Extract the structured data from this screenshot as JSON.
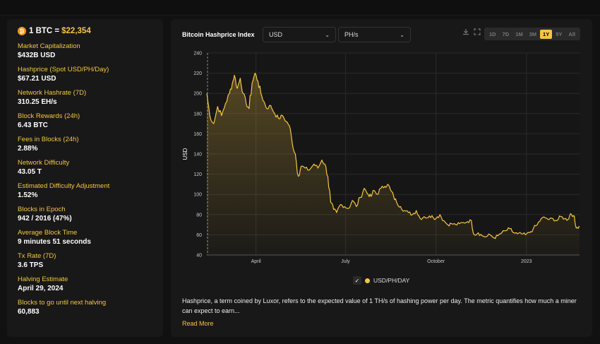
{
  "header": {
    "price_label": "1 BTC =",
    "price_value": "$22,354",
    "btc_icon": "₿"
  },
  "stats": [
    {
      "label": "Market Capitalization",
      "value": "$432B USD"
    },
    {
      "label": "Hashprice (Spot USD/PH/Day)",
      "value": "$67.21 USD"
    },
    {
      "label": "Network Hashrate (7D)",
      "value": "310.25 EH/s"
    },
    {
      "label": "Block Rewards (24h)",
      "value": "6.43 BTC"
    },
    {
      "label": "Fees in Blocks (24h)",
      "value": "2.88%"
    },
    {
      "label": "Network Difficulty",
      "value": "43.05 T"
    },
    {
      "label": "Estimated Difficulty Adjustment",
      "value": "1.52%"
    },
    {
      "label": "Blocks in Epoch",
      "value": "942 / 2016 (47%)"
    },
    {
      "label": "Average Block Time",
      "value": "9 minutes 51 seconds"
    },
    {
      "label": "Tx Rate (7D)",
      "value": "3.6 TPS"
    },
    {
      "label": "Halving Estimate",
      "value": "April 29, 2024"
    },
    {
      "label": "Blocks to go until next halving",
      "value": "60,883"
    }
  ],
  "chart_panel": {
    "title": "Bitcoin Hashprice Index",
    "currency_select": "USD",
    "unit_select": "PH/s",
    "download_icon": "download-icon",
    "fullscreen_icon": "fullscreen-icon",
    "ranges": [
      "1D",
      "7D",
      "1M",
      "3M",
      "1Y",
      "5Y",
      "All"
    ],
    "active_range": "1Y",
    "legend_label": "USD/PH/DAY",
    "description": "Hashprice, a term coined by Luxor, refers to the expected value of 1 TH/s of hashing power per day. The metric quantifies how much a miner can expect to earn...",
    "read_more": "Read More",
    "accent_color": "#f5c542"
  },
  "chart_data": {
    "type": "line",
    "title": "",
    "xlabel": "",
    "ylabel": "USD",
    "ylim": [
      40,
      240
    ],
    "yticks": [
      40,
      60,
      80,
      100,
      120,
      140,
      160,
      180,
      200,
      220,
      240
    ],
    "xticks": [
      "April",
      "July",
      "October",
      "2023"
    ],
    "grid": true,
    "series": [
      {
        "name": "USD/PH/DAY",
        "points": [
          [
            "2022-02-10",
            200
          ],
          [
            "2022-02-13",
            178
          ],
          [
            "2022-02-17",
            170
          ],
          [
            "2022-02-21",
            187
          ],
          [
            "2022-02-25",
            178
          ],
          [
            "2022-03-01",
            190
          ],
          [
            "2022-03-05",
            200
          ],
          [
            "2022-03-08",
            210
          ],
          [
            "2022-03-10",
            218
          ],
          [
            "2022-03-13",
            205
          ],
          [
            "2022-03-16",
            215
          ],
          [
            "2022-03-19",
            200
          ],
          [
            "2022-03-22",
            190
          ],
          [
            "2022-03-25",
            185
          ],
          [
            "2022-03-28",
            210
          ],
          [
            "2022-03-31",
            220
          ],
          [
            "2022-04-03",
            212
          ],
          [
            "2022-04-06",
            200
          ],
          [
            "2022-04-09",
            192
          ],
          [
            "2022-04-12",
            185
          ],
          [
            "2022-04-16",
            188
          ],
          [
            "2022-04-20",
            180
          ],
          [
            "2022-04-24",
            175
          ],
          [
            "2022-04-28",
            178
          ],
          [
            "2022-05-02",
            172
          ],
          [
            "2022-05-05",
            168
          ],
          [
            "2022-05-08",
            150
          ],
          [
            "2022-05-11",
            140
          ],
          [
            "2022-05-14",
            118
          ],
          [
            "2022-05-17",
            128
          ],
          [
            "2022-05-21",
            126
          ],
          [
            "2022-05-25",
            124
          ],
          [
            "2022-05-30",
            130
          ],
          [
            "2022-06-03",
            126
          ],
          [
            "2022-06-07",
            134
          ],
          [
            "2022-06-10",
            130
          ],
          [
            "2022-06-13",
            118
          ],
          [
            "2022-06-16",
            92
          ],
          [
            "2022-06-19",
            85
          ],
          [
            "2022-06-22",
            82
          ],
          [
            "2022-06-26",
            90
          ],
          [
            "2022-06-30",
            88
          ],
          [
            "2022-07-04",
            86
          ],
          [
            "2022-07-08",
            94
          ],
          [
            "2022-07-12",
            88
          ],
          [
            "2022-07-16",
            97
          ],
          [
            "2022-07-20",
            106
          ],
          [
            "2022-07-24",
            100
          ],
          [
            "2022-07-27",
            98
          ],
          [
            "2022-07-30",
            104
          ],
          [
            "2022-08-02",
            100
          ],
          [
            "2022-08-06",
            106
          ],
          [
            "2022-08-10",
            108
          ],
          [
            "2022-08-13",
            110
          ],
          [
            "2022-08-16",
            104
          ],
          [
            "2022-08-19",
            98
          ],
          [
            "2022-08-22",
            92
          ],
          [
            "2022-08-26",
            88
          ],
          [
            "2022-08-30",
            84
          ],
          [
            "2022-09-03",
            82
          ],
          [
            "2022-09-07",
            80
          ],
          [
            "2022-09-11",
            84
          ],
          [
            "2022-09-15",
            76
          ],
          [
            "2022-09-19",
            78
          ],
          [
            "2022-09-23",
            77
          ],
          [
            "2022-09-27",
            79
          ],
          [
            "2022-10-01",
            76
          ],
          [
            "2022-10-05",
            80
          ],
          [
            "2022-10-09",
            74
          ],
          [
            "2022-10-13",
            70
          ],
          [
            "2022-10-17",
            71
          ],
          [
            "2022-10-21",
            70
          ],
          [
            "2022-10-25",
            71
          ],
          [
            "2022-10-29",
            72
          ],
          [
            "2022-11-02",
            73
          ],
          [
            "2022-11-06",
            74
          ],
          [
            "2022-11-09",
            60
          ],
          [
            "2022-11-13",
            62
          ],
          [
            "2022-11-17",
            59
          ],
          [
            "2022-11-21",
            58
          ],
          [
            "2022-11-25",
            60
          ],
          [
            "2022-11-29",
            57
          ],
          [
            "2022-12-03",
            59
          ],
          [
            "2022-12-07",
            62
          ],
          [
            "2022-12-11",
            64
          ],
          [
            "2022-12-15",
            66
          ],
          [
            "2022-12-19",
            62
          ],
          [
            "2022-12-23",
            61
          ],
          [
            "2022-12-27",
            61
          ],
          [
            "2022-12-31",
            60
          ],
          [
            "2023-01-04",
            62
          ],
          [
            "2023-01-08",
            66
          ],
          [
            "2023-01-12",
            70
          ],
          [
            "2023-01-16",
            76
          ],
          [
            "2023-01-20",
            77
          ],
          [
            "2023-01-24",
            75
          ],
          [
            "2023-01-28",
            76
          ],
          [
            "2023-02-01",
            74
          ],
          [
            "2023-02-05",
            78
          ],
          [
            "2023-02-09",
            76
          ],
          [
            "2023-02-12",
            75
          ],
          [
            "2023-02-15",
            81
          ],
          [
            "2023-02-18",
            79
          ],
          [
            "2023-02-20",
            69
          ],
          [
            "2023-02-22",
            67
          ],
          [
            "2023-02-24",
            68
          ]
        ]
      }
    ]
  }
}
